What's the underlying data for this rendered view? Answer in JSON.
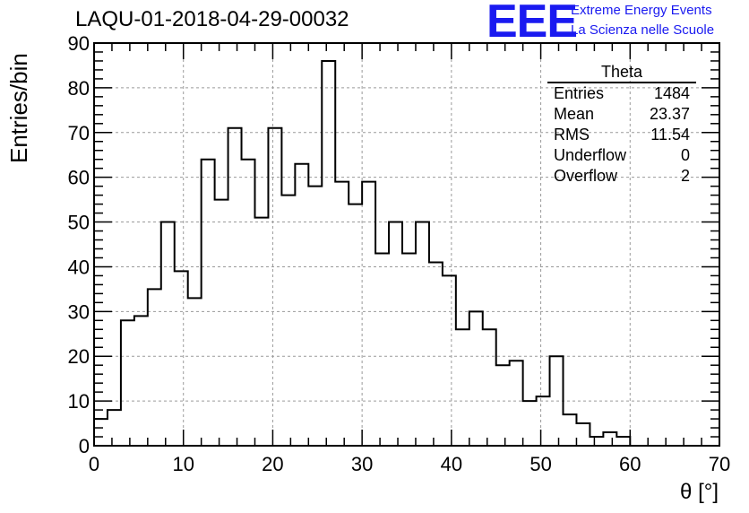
{
  "title": "LAQU-01-2018-04-29-00032",
  "logo": {
    "letters": "EEE",
    "line1": "Extreme Energy Events",
    "line2": "La Scienza nelle Scuole",
    "color": "#1a1af0"
  },
  "stats": {
    "title": "Theta",
    "rows": [
      {
        "label": "Entries",
        "value": "1484"
      },
      {
        "label": "Mean",
        "value": "23.37"
      },
      {
        "label": "RMS",
        "value": "11.54"
      },
      {
        "label": "Underflow",
        "value": "0"
      },
      {
        "label": "Overflow",
        "value": "2"
      }
    ]
  },
  "chart_data": {
    "type": "bar",
    "style": "step-histogram",
    "xlabel": "θ [°]",
    "ylabel": "Entries/bin",
    "xlim": [
      0,
      70
    ],
    "ylim": [
      0,
      90
    ],
    "bin_width": 1.5,
    "x_ticks": [
      0,
      10,
      20,
      30,
      40,
      50,
      60,
      70
    ],
    "y_ticks": [
      0,
      10,
      20,
      30,
      40,
      50,
      60,
      70,
      80,
      90
    ],
    "grid": true,
    "values": [
      6,
      8,
      28,
      29,
      35,
      50,
      39,
      33,
      64,
      55,
      71,
      64,
      51,
      71,
      56,
      63,
      58,
      86,
      59,
      54,
      59,
      43,
      50,
      43,
      50,
      41,
      38,
      26,
      30,
      26,
      18,
      19,
      10,
      11,
      20,
      7,
      5,
      2,
      3,
      2,
      0
    ]
  }
}
